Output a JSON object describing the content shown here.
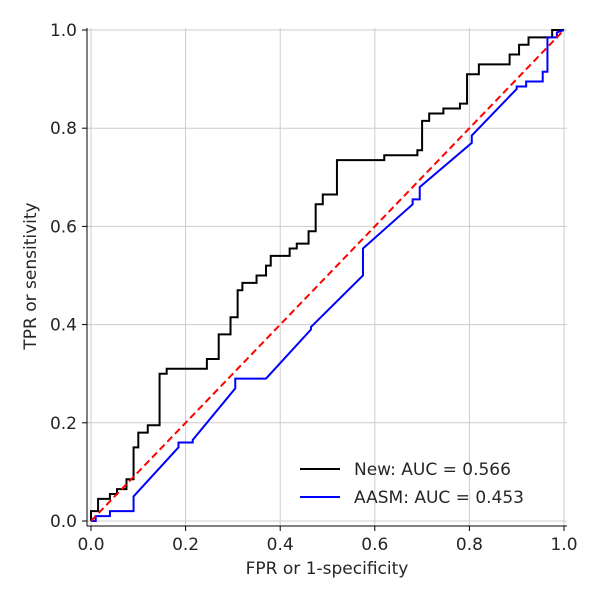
{
  "chart_data": {
    "type": "line",
    "title": "",
    "xlabel": "FPR or 1-specificity",
    "ylabel": "TPR or sensitivity",
    "xlim": [
      0.0,
      1.0
    ],
    "ylim": [
      0.0,
      1.0
    ],
    "grid": true,
    "legend_position": "bottom-right",
    "xticks": [
      "0.0",
      "0.2",
      "0.4",
      "0.6",
      "0.8",
      "1.0"
    ],
    "yticks": [
      "0.0",
      "0.2",
      "0.4",
      "0.6",
      "0.8",
      "1.0"
    ],
    "series": [
      {
        "name": "New: AUC = 0.566",
        "color": "#000000",
        "style": "solid",
        "x": [
          0.0,
          0.0,
          0.015,
          0.015,
          0.04,
          0.04,
          0.055,
          0.055,
          0.075,
          0.075,
          0.09,
          0.09,
          0.1,
          0.1,
          0.12,
          0.12,
          0.145,
          0.145,
          0.16,
          0.16,
          0.245,
          0.245,
          0.27,
          0.27,
          0.295,
          0.295,
          0.31,
          0.31,
          0.32,
          0.32,
          0.35,
          0.35,
          0.37,
          0.37,
          0.38,
          0.38,
          0.42,
          0.42,
          0.435,
          0.435,
          0.46,
          0.46,
          0.475,
          0.475,
          0.49,
          0.49,
          0.52,
          0.52,
          0.62,
          0.62,
          0.69,
          0.69,
          0.7,
          0.7,
          0.715,
          0.715,
          0.745,
          0.745,
          0.78,
          0.78,
          0.795,
          0.795,
          0.82,
          0.82,
          0.885,
          0.885,
          0.905,
          0.905,
          0.925,
          0.925,
          0.975,
          0.975,
          1.0
        ],
        "y": [
          0.0,
          0.02,
          0.02,
          0.045,
          0.045,
          0.055,
          0.055,
          0.065,
          0.065,
          0.085,
          0.085,
          0.15,
          0.15,
          0.18,
          0.18,
          0.195,
          0.195,
          0.3,
          0.3,
          0.31,
          0.31,
          0.33,
          0.33,
          0.38,
          0.38,
          0.415,
          0.415,
          0.47,
          0.47,
          0.485,
          0.485,
          0.5,
          0.5,
          0.52,
          0.52,
          0.54,
          0.54,
          0.555,
          0.555,
          0.565,
          0.565,
          0.59,
          0.59,
          0.645,
          0.645,
          0.665,
          0.665,
          0.735,
          0.735,
          0.745,
          0.745,
          0.755,
          0.755,
          0.815,
          0.815,
          0.83,
          0.83,
          0.84,
          0.84,
          0.85,
          0.85,
          0.91,
          0.91,
          0.93,
          0.93,
          0.95,
          0.95,
          0.97,
          0.97,
          0.985,
          0.985,
          1.0,
          1.0
        ]
      },
      {
        "name": "AASM: AUC = 0.453",
        "color": "#0000ff",
        "style": "solid",
        "x": [
          0.0,
          0.01,
          0.01,
          0.04,
          0.04,
          0.09,
          0.09,
          0.185,
          0.185,
          0.215,
          0.215,
          0.305,
          0.305,
          0.37,
          0.37,
          0.465,
          0.465,
          0.575,
          0.575,
          0.68,
          0.68,
          0.695,
          0.695,
          0.805,
          0.805,
          0.9,
          0.9,
          0.92,
          0.92,
          0.955,
          0.955,
          0.965,
          0.965,
          0.985,
          0.985,
          1.0
        ],
        "y": [
          0.0,
          0.0,
          0.01,
          0.01,
          0.02,
          0.02,
          0.05,
          0.15,
          0.16,
          0.16,
          0.165,
          0.27,
          0.29,
          0.29,
          0.29,
          0.39,
          0.395,
          0.5,
          0.555,
          0.645,
          0.655,
          0.655,
          0.68,
          0.77,
          0.785,
          0.88,
          0.885,
          0.885,
          0.895,
          0.895,
          0.915,
          0.915,
          0.985,
          0.985,
          0.995,
          1.0
        ]
      },
      {
        "name": "",
        "color": "#ff0000",
        "style": "dashed",
        "x": [
          0.0,
          1.0
        ],
        "y": [
          0.0,
          1.0
        ]
      }
    ]
  }
}
